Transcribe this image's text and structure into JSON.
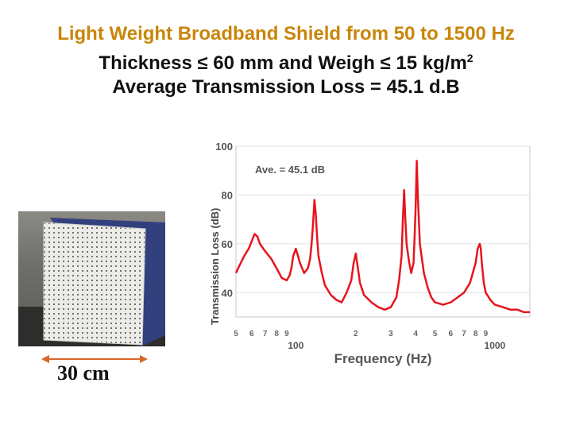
{
  "title": {
    "line1": "Light Weight Broadband Shield from 50 to 1500 Hz",
    "line2_pre": "Thickness ",
    "line2_sym1": "≤",
    "line2_mid": " 60 mm and Weigh ",
    "line2_sym2": "≤",
    "line2_post": " 15 kg/m",
    "line2_sup": "2",
    "line3": "Average Transmission Loss = 45.1 d.B"
  },
  "photo": {
    "scale_label": "30 cm"
  },
  "colors": {
    "title_accent": "#c8860a",
    "curve": "#e8141c",
    "arrow": "#d9662a"
  },
  "chart_data": {
    "type": "line",
    "xscale": "log",
    "xlim": [
      50,
      1500
    ],
    "ylim": [
      30,
      100
    ],
    "xlabel": "Frequency (Hz)",
    "ylabel": "Transmission Loss (dB)",
    "ytick_values": [
      40,
      60,
      80,
      100
    ],
    "ytick_labels": [
      "40",
      "60",
      "80",
      "100"
    ],
    "xtick_minor": [
      {
        "value": 50,
        "label": "5"
      },
      {
        "value": 60,
        "label": "6"
      },
      {
        "value": 70,
        "label": "7"
      },
      {
        "value": 80,
        "label": "8"
      },
      {
        "value": 90,
        "label": "9"
      },
      {
        "value": 200,
        "label": "2"
      },
      {
        "value": 300,
        "label": "3"
      },
      {
        "value": 400,
        "label": "4"
      },
      {
        "value": 500,
        "label": "5"
      },
      {
        "value": 600,
        "label": "6"
      },
      {
        "value": 700,
        "label": "7"
      },
      {
        "value": 800,
        "label": "8"
      },
      {
        "value": 900,
        "label": "9"
      }
    ],
    "xtick_major": [
      {
        "value": 100,
        "label": "100"
      },
      {
        "value": 1000,
        "label": "1000"
      }
    ],
    "annotation": "Ave. = 45.1 dB",
    "series": [
      {
        "name": "Transmission Loss",
        "x": [
          50,
          52,
          55,
          58,
          60,
          62,
          64,
          66,
          70,
          75,
          80,
          85,
          90,
          93,
          95,
          97,
          100,
          105,
          110,
          115,
          118,
          120,
          122,
          124,
          126,
          128,
          130,
          135,
          140,
          150,
          160,
          170,
          180,
          190,
          195,
          200,
          205,
          210,
          220,
          240,
          260,
          280,
          300,
          320,
          330,
          340,
          345,
          350,
          355,
          360,
          370,
          380,
          390,
          395,
          400,
          405,
          410,
          420,
          440,
          460,
          480,
          500,
          550,
          600,
          650,
          700,
          750,
          800,
          820,
          840,
          850,
          860,
          880,
          900,
          950,
          1000,
          1100,
          1200,
          1300,
          1400,
          1500
        ],
        "y": [
          48,
          51,
          55,
          58,
          61,
          64,
          63,
          60,
          57,
          54,
          50,
          46,
          45,
          47,
          50,
          55,
          58,
          52,
          48,
          50,
          54,
          60,
          68,
          78,
          72,
          62,
          55,
          48,
          43,
          39,
          37,
          36,
          40,
          45,
          52,
          56,
          50,
          44,
          39,
          36,
          34,
          33,
          34,
          38,
          45,
          55,
          70,
          82,
          70,
          60,
          53,
          48,
          52,
          62,
          75,
          94,
          80,
          60,
          48,
          42,
          38,
          36,
          35,
          36,
          38,
          40,
          44,
          52,
          58,
          60,
          58,
          52,
          44,
          40,
          37,
          35,
          34,
          33,
          33,
          32,
          32
        ]
      }
    ]
  }
}
